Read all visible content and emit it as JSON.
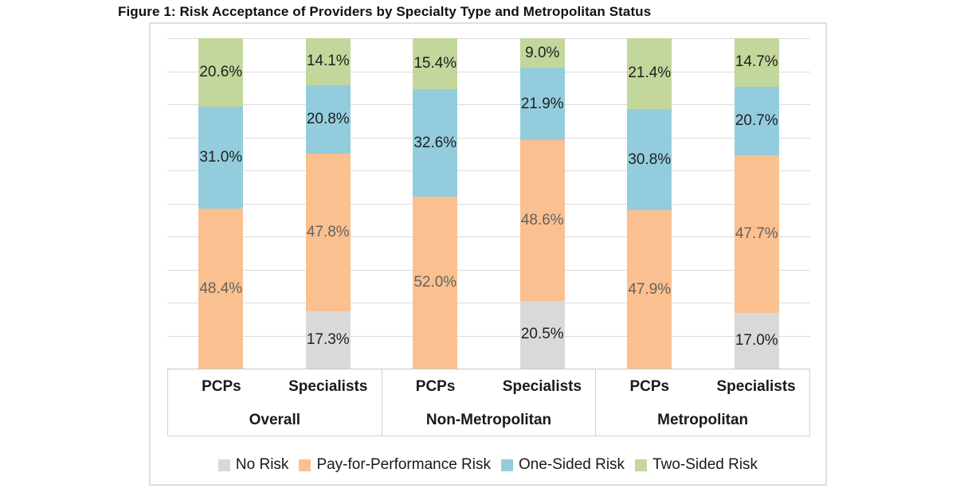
{
  "title": "Figure 1: Risk Acceptance of Providers by Specialty Type and Metropolitan Status",
  "colors": {
    "no_risk": "#D9D9D9",
    "pay_for_performance": "#FAC090",
    "one_sided": "#93CDDD",
    "two_sided": "#C3D69B",
    "gridline": "#DCDCDC",
    "axis_line": "#C6C6C6",
    "chart_border": "#DEDEDE",
    "label_on_orange": "#66625C",
    "label_default": "#1F1F1F"
  },
  "chart_data": {
    "type": "bar",
    "stacked": true,
    "title": "Figure 1: Risk Acceptance of Providers by Specialty Type and Metropolitan Status",
    "xlabel": "",
    "ylabel": "",
    "ylim": [
      0,
      100
    ],
    "gridline_step_percent": 10,
    "y_axis_labels_visible": false,
    "legend_position": "bottom",
    "series_names": [
      "No Risk",
      "Pay-for-Performance Risk",
      "One-Sided Risk",
      "Two-Sided Risk"
    ],
    "series_color_keys": [
      "no_risk",
      "pay_for_performance",
      "one_sided",
      "two_sided"
    ],
    "series_slugs": [
      "no-risk",
      "pay-for-performance-risk",
      "one-sided-risk",
      "two-sided-risk"
    ],
    "groups": [
      {
        "label": "Overall",
        "bars": [
          {
            "category": "PCPs",
            "values": [
              0,
              48.4,
              31.0,
              20.6
            ],
            "labels": [
              "",
              "48.4%",
              "31.0%",
              "20.6%"
            ]
          },
          {
            "category": "Specialists",
            "values": [
              17.3,
              47.8,
              20.8,
              14.1
            ],
            "labels": [
              "17.3%",
              "47.8%",
              "20.8%",
              "14.1%"
            ]
          }
        ]
      },
      {
        "label": "Non-Metropolitan",
        "bars": [
          {
            "category": "PCPs",
            "values": [
              0,
              52.0,
              32.6,
              15.4
            ],
            "labels": [
              "",
              "52.0%",
              "32.6%",
              "15.4%"
            ]
          },
          {
            "category": "Specialists",
            "values": [
              20.5,
              48.6,
              21.9,
              9.0
            ],
            "labels": [
              "20.5%",
              "48.6%",
              "21.9%",
              "9.0%"
            ]
          }
        ]
      },
      {
        "label": "Metropolitan",
        "bars": [
          {
            "category": "PCPs",
            "values": [
              0,
              47.9,
              30.8,
              21.4
            ],
            "labels": [
              "",
              "47.9%",
              "30.8%",
              "21.4%"
            ]
          },
          {
            "category": "Specialists",
            "values": [
              17.0,
              47.7,
              20.7,
              14.7
            ],
            "labels": [
              "17.0%",
              "47.7%",
              "20.7%",
              "14.7%"
            ]
          }
        ]
      }
    ]
  },
  "legend": {
    "items": [
      {
        "label": "No Risk",
        "color_key": "no_risk"
      },
      {
        "label": "Pay-for-Performance Risk",
        "color_key": "pay_for_performance"
      },
      {
        "label": "One-Sided Risk",
        "color_key": "one_sided"
      },
      {
        "label": "Two-Sided Risk",
        "color_key": "two_sided"
      }
    ]
  }
}
